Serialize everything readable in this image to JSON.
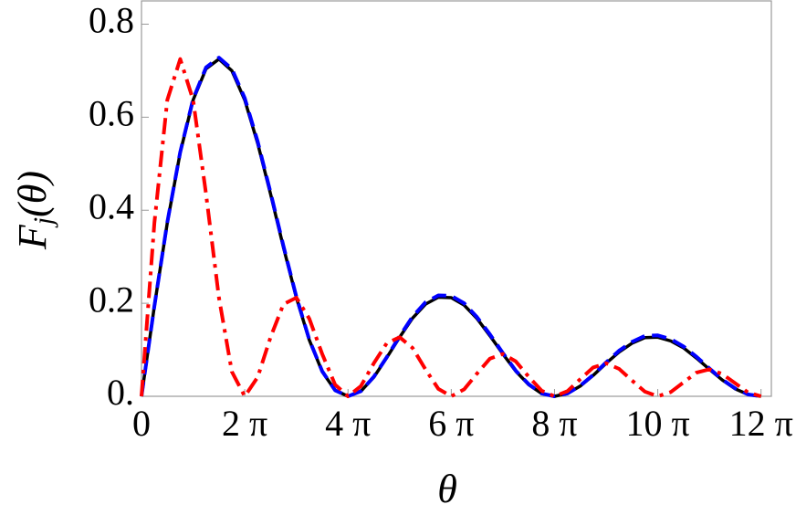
{
  "chart_data": {
    "type": "line",
    "xlabel": "θ",
    "ylabel": {
      "main": "F",
      "sub": "j",
      "arg": "(θ)"
    },
    "x": [
      0,
      0.25,
      0.5,
      0.75,
      1,
      1.25,
      1.5,
      1.75,
      2,
      2.25,
      2.5,
      2.75,
      3,
      3.25,
      3.5,
      3.75,
      4,
      4.25,
      4.5,
      4.75,
      5,
      5.25,
      5.5,
      5.75,
      6,
      6.25,
      6.5,
      6.75,
      7,
      7.25,
      7.5,
      7.75,
      8,
      8.25,
      8.5,
      8.75,
      9,
      9.25,
      9.5,
      9.75,
      10,
      10.25,
      10.5,
      10.75,
      11,
      11.25,
      11.5,
      11.75,
      12
    ],
    "series": [
      {
        "color": "#ff0000",
        "style": "dashdot",
        "values": [
          0,
          0.373,
          0.637,
          0.725,
          0.637,
          0.435,
          0.212,
          0.053,
          0,
          0.041,
          0.127,
          0.198,
          0.212,
          0.167,
          0.091,
          0.025,
          0,
          0.022,
          0.071,
          0.114,
          0.127,
          0.104,
          0.058,
          0.016,
          0,
          0.015,
          0.049,
          0.081,
          0.091,
          0.075,
          0.042,
          0.012,
          0,
          0.011,
          0.037,
          0.062,
          0.071,
          0.059,
          0.034,
          0.01,
          0,
          0.009,
          0.03,
          0.051,
          0.058,
          0.048,
          0.028,
          0.008,
          0
        ]
      },
      {
        "color": "#000000",
        "style": "solid",
        "values": [
          0,
          0.194,
          0.373,
          0.524,
          0.637,
          0.704,
          0.725,
          0.7,
          0.637,
          0.544,
          0.435,
          0.32,
          0.212,
          0.121,
          0.053,
          0.013,
          0,
          0.011,
          0.041,
          0.083,
          0.127,
          0.168,
          0.198,
          0.213,
          0.212,
          0.196,
          0.167,
          0.13,
          0.091,
          0.054,
          0.025,
          0.006,
          0,
          0.006,
          0.022,
          0.045,
          0.071,
          0.095,
          0.114,
          0.126,
          0.127,
          0.119,
          0.104,
          0.082,
          0.058,
          0.035,
          0.016,
          0.004,
          0
        ]
      },
      {
        "color": "#0000ff",
        "style": "dashed",
        "values": [
          0,
          0.194,
          0.374,
          0.525,
          0.639,
          0.707,
          0.728,
          0.704,
          0.641,
          0.548,
          0.438,
          0.323,
          0.214,
          0.122,
          0.054,
          0.013,
          0,
          0.011,
          0.042,
          0.084,
          0.129,
          0.171,
          0.202,
          0.217,
          0.216,
          0.2,
          0.17,
          0.133,
          0.093,
          0.055,
          0.026,
          0.006,
          0,
          0.006,
          0.023,
          0.046,
          0.073,
          0.098,
          0.117,
          0.13,
          0.131,
          0.123,
          0.107,
          0.085,
          0.06,
          0.036,
          0.017,
          0.004,
          0
        ]
      }
    ],
    "xlim": [
      0,
      12.2
    ],
    "ylim": [
      0,
      0.85
    ],
    "xticks": [
      0,
      {
        "value": 2,
        "label": "2 π"
      },
      {
        "value": 4,
        "label": "4 π"
      },
      {
        "value": 6,
        "label": "6 π"
      },
      {
        "value": 8,
        "label": "8 π"
      },
      {
        "value": 10,
        "label": "10 π"
      },
      {
        "value": 12,
        "label": "12 π"
      }
    ],
    "yticks": [
      {
        "value": 0,
        "label": "0."
      },
      0.2,
      0.4,
      0.6,
      0.8
    ]
  }
}
